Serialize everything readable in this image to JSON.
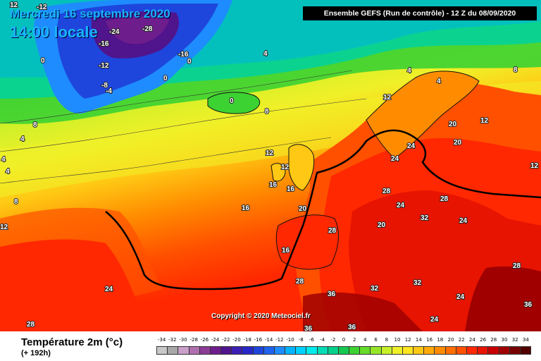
{
  "header": {
    "date": "Mercredi 16 septembre 2020",
    "time": "14:00 locale",
    "run": "Ensemble GEFS  (Run de contrôle)  - 12 Z du 08/09/2020"
  },
  "copyright": "Copyright © 2020 Meteociel.fr",
  "legend": {
    "title": "Température 2m (°c)",
    "subtitle": "(+ 192h)",
    "scale": [
      "-34",
      "-32",
      "-30",
      "-28",
      "-26",
      "-24",
      "-22",
      "-20",
      "-18",
      "-16",
      "-14",
      "-12",
      "-10",
      "-8",
      "-6",
      "-4",
      "-2",
      "0",
      "2",
      "4",
      "6",
      "8",
      "10",
      "12",
      "14",
      "16",
      "18",
      "20",
      "22",
      "24",
      "26",
      "28",
      "30",
      "32",
      "34"
    ],
    "colors": [
      "#c8c8c8",
      "#a8a8a8",
      "#c8a0c8",
      "#b070b0",
      "#8c3c96",
      "#6e1e8c",
      "#50148c",
      "#3c1eb4",
      "#2828c8",
      "#1e46dc",
      "#1e64f0",
      "#1e8cff",
      "#00b4ff",
      "#00d2ff",
      "#00ebeb",
      "#00dcb4",
      "#00d28c",
      "#14c850",
      "#3cd232",
      "#64dc28",
      "#96e628",
      "#c8f028",
      "#f0f028",
      "#ffe61e",
      "#ffc814",
      "#ffaa0a",
      "#ff8c00",
      "#ff6e00",
      "#ff5000",
      "#ff2800",
      "#e61400",
      "#c80000",
      "#a00000",
      "#780000",
      "#500000"
    ]
  },
  "labels": [
    {
      "t": "12"
    },
    {
      "t": "-24"
    },
    {
      "t": "-28"
    },
    {
      "t": "-16"
    },
    {
      "t": "-12"
    },
    {
      "t": "-16"
    },
    {
      "t": "-8"
    },
    {
      "t": "-4"
    },
    {
      "t": "0"
    },
    {
      "t": "-12"
    },
    {
      "t": "0"
    },
    {
      "t": "0"
    },
    {
      "t": "4"
    },
    {
      "t": "0"
    },
    {
      "t": "8"
    },
    {
      "t": "4"
    },
    {
      "t": "4"
    },
    {
      "t": "8"
    },
    {
      "t": "12"
    },
    {
      "t": "12"
    },
    {
      "t": "16"
    },
    {
      "t": "16"
    },
    {
      "t": "16"
    },
    {
      "t": "20"
    },
    {
      "t": "16"
    },
    {
      "t": "24"
    },
    {
      "t": "28"
    },
    {
      "t": "12"
    },
    {
      "t": "20"
    },
    {
      "t": "20"
    },
    {
      "t": "12"
    },
    {
      "t": "24"
    },
    {
      "t": "24"
    },
    {
      "t": "28"
    },
    {
      "t": "24"
    },
    {
      "t": "28"
    },
    {
      "t": "32"
    },
    {
      "t": "28"
    },
    {
      "t": "20"
    },
    {
      "t": "24"
    },
    {
      "t": "32"
    },
    {
      "t": "36"
    },
    {
      "t": "32"
    },
    {
      "t": "28"
    },
    {
      "t": "24"
    },
    {
      "t": "36"
    },
    {
      "t": "36"
    },
    {
      "t": "36"
    },
    {
      "t": "24"
    },
    {
      "t": "28"
    },
    {
      "t": "4"
    },
    {
      "t": "4"
    },
    {
      "t": "8"
    },
    {
      "t": "12"
    },
    {
      "t": "8"
    },
    {
      "t": "4"
    },
    {
      "t": "12"
    }
  ]
}
